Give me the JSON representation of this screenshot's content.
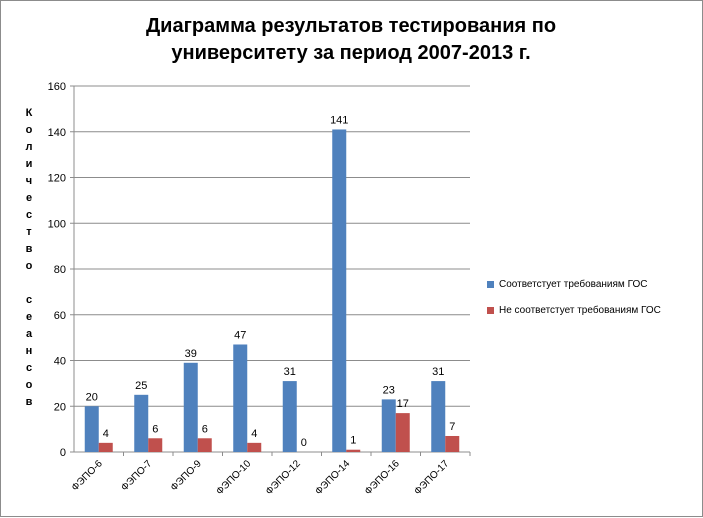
{
  "chart_data": {
    "type": "bar",
    "title_lines": [
      "Диаграмма результатов тестирования по",
      "университету за период 2007-2013 г."
    ],
    "ylabel_letters": [
      "К",
      "о",
      "л",
      "и",
      "ч",
      "е",
      "с",
      "т",
      "в",
      "о",
      " ",
      "с",
      "е",
      "а",
      "н",
      "с",
      "о",
      "в"
    ],
    "xlabel": "",
    "ylim": [
      0,
      160
    ],
    "yticks": [
      0,
      20,
      40,
      60,
      80,
      100,
      120,
      140,
      160
    ],
    "grid": true,
    "legend_position": "right",
    "categories": [
      "ФЭПО-6",
      "ФЭПО-7",
      "ФЭПО-9",
      "ФЭПО-10",
      "ФЭПО-12",
      "ФЭПО-14",
      "ФЭПО-16",
      "ФЭПО-17"
    ],
    "series": [
      {
        "name": "Соответстует требованиям ГОС",
        "color": "#4f81bd",
        "values": [
          20,
          25,
          39,
          47,
          31,
          141,
          23,
          31
        ]
      },
      {
        "name": "Не соответстует требованиям ГОС",
        "color": "#c0504d",
        "values": [
          4,
          6,
          6,
          4,
          0,
          1,
          17,
          7
        ]
      }
    ]
  }
}
